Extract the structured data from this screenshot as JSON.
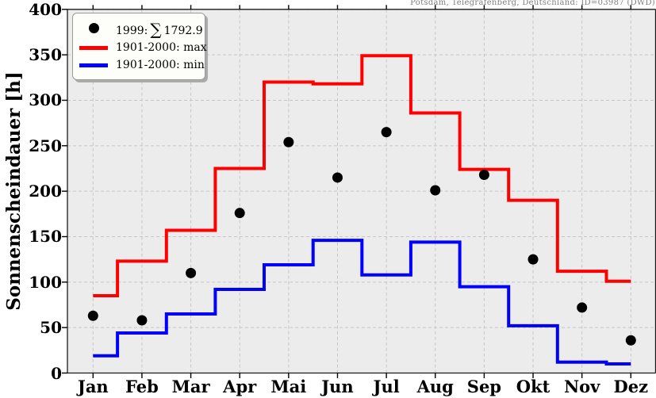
{
  "figure_title": "Potsdam, Telegrafenberg, Deutschland: ID=03987 (DWD)",
  "legend": {
    "series_1999": {
      "prefix": "1999:",
      "sum_symbol": "∑",
      "total": "1792.9"
    },
    "max_label": "1901-2000: max",
    "min_label": "1901-2000: min"
  },
  "colors": {
    "max_line": "#ff0000",
    "min_line": "#0000ff",
    "dots": "#000000",
    "plot_background": "#ececec",
    "gridline": "#c6c6c6",
    "title_text": "#7f7f7f"
  },
  "chart_data": {
    "type": "line",
    "title": "Potsdam, Telegrafenberg, Deutschland: ID=03987 (DWD)",
    "xlabel": "",
    "ylabel": "Sonnenscheindauer [h]",
    "categories": [
      "Jan",
      "Feb",
      "Mar",
      "Apr",
      "Mai",
      "Jun",
      "Jul",
      "Aug",
      "Sep",
      "Okt",
      "Nov",
      "Dez"
    ],
    "y_ticks": [
      0,
      50,
      100,
      150,
      200,
      250,
      300,
      350,
      400
    ],
    "ylim": [
      0,
      400
    ],
    "grid": true,
    "grid_style": "dashed",
    "legend_position": "upper left",
    "series": [
      {
        "name": "1999: ∑ 1792.9",
        "style": "scatter-dots",
        "color": "#000000",
        "values": [
          63,
          58,
          110,
          176,
          254,
          215,
          265,
          201,
          218,
          125,
          72,
          36
        ],
        "annual_sum": 1792.9
      },
      {
        "name": "1901-2000: max",
        "style": "step-mid",
        "color": "#ff0000",
        "values": [
          85,
          123,
          157,
          225,
          320,
          318,
          349,
          286,
          224,
          190,
          112,
          101
        ]
      },
      {
        "name": "1901-2000: min",
        "style": "step-mid",
        "color": "#0000ff",
        "values": [
          19,
          44,
          65,
          92,
          119,
          146,
          108,
          144,
          95,
          52,
          12,
          10
        ]
      }
    ]
  }
}
